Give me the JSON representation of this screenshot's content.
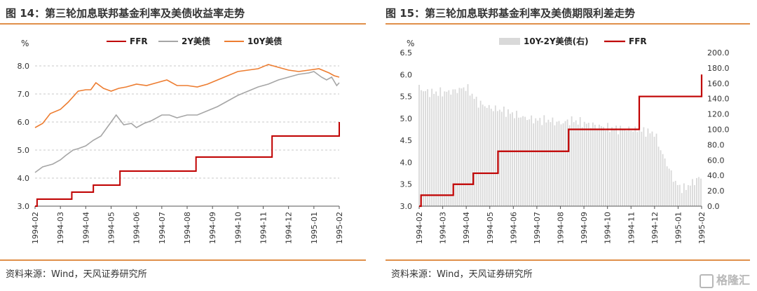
{
  "colors": {
    "ffr": "#c00000",
    "y2": "#a6a6a6",
    "y10": "#ed7d31",
    "spread": "#d9d9d9",
    "grid": "#c8c8c8",
    "rule": "#e0904a"
  },
  "left": {
    "title": "图 14：第三轮加息联邦基金利率及美债收益率走势",
    "source": "资料来源：Wind，天风证券研究所"
  },
  "right": {
    "title": "图 15：第三轮加息联邦基金利率及美债期限利差走势",
    "source": "资料来源：Wind，天风证券研究所"
  },
  "watermark": "格隆汇",
  "chart_data": [
    {
      "type": "line",
      "ylabel": "%",
      "ylim": [
        3.0,
        8.5
      ],
      "yticks": [
        "3.0",
        "4.0",
        "5.0",
        "6.0",
        "7.0",
        "8.0"
      ],
      "grid": "horizontal dashed",
      "legend_position": "top",
      "categories": [
        "1994-02",
        "1994-03",
        "1994-04",
        "1994-05",
        "1994-06",
        "1994-07",
        "1994-08",
        "1994-09",
        "1994-10",
        "1994-11",
        "1994-12",
        "1995-01",
        "1995-02"
      ],
      "series": [
        {
          "name": "FFR",
          "color_key": "ffr",
          "step": true,
          "x": [
            0,
            0.08,
            1.45,
            2.3,
            3.35,
            6.35,
            9.35,
            11.95,
            12.0
          ],
          "values": [
            3.0,
            3.25,
            3.5,
            3.75,
            4.25,
            4.75,
            5.5,
            5.5,
            6.0
          ]
        },
        {
          "name": "2Y美债",
          "color_key": "y2",
          "x": [
            0,
            0.3,
            0.7,
            1.0,
            1.2,
            1.5,
            1.7,
            2.0,
            2.3,
            2.6,
            3.0,
            3.2,
            3.5,
            3.8,
            4.0,
            4.3,
            4.6,
            5.0,
            5.3,
            5.6,
            6.0,
            6.4,
            6.8,
            7.2,
            7.6,
            8.0,
            8.4,
            8.8,
            9.2,
            9.6,
            10.0,
            10.4,
            10.8,
            11.0,
            11.3,
            11.5,
            11.7,
            11.9,
            12.0
          ],
          "values": [
            4.2,
            4.4,
            4.5,
            4.65,
            4.8,
            5.0,
            5.05,
            5.15,
            5.35,
            5.5,
            6.0,
            6.25,
            5.9,
            5.95,
            5.8,
            5.95,
            6.05,
            6.25,
            6.25,
            6.15,
            6.25,
            6.25,
            6.4,
            6.55,
            6.75,
            6.95,
            7.1,
            7.25,
            7.35,
            7.5,
            7.6,
            7.7,
            7.75,
            7.8,
            7.6,
            7.5,
            7.6,
            7.3,
            7.4
          ]
        },
        {
          "name": "10Y美债",
          "color_key": "y10",
          "x": [
            0,
            0.3,
            0.6,
            1.0,
            1.3,
            1.7,
            2.0,
            2.2,
            2.4,
            2.7,
            3.0,
            3.3,
            3.6,
            4.0,
            4.4,
            4.8,
            5.2,
            5.6,
            6.0,
            6.4,
            6.8,
            7.2,
            7.6,
            8.0,
            8.4,
            8.8,
            9.2,
            9.6,
            10.0,
            10.4,
            10.8,
            11.2,
            11.6,
            11.8,
            12.0
          ],
          "values": [
            5.8,
            5.95,
            6.3,
            6.45,
            6.7,
            7.1,
            7.15,
            7.15,
            7.4,
            7.2,
            7.1,
            7.2,
            7.25,
            7.35,
            7.3,
            7.4,
            7.5,
            7.3,
            7.3,
            7.25,
            7.35,
            7.5,
            7.65,
            7.8,
            7.85,
            7.9,
            8.05,
            7.95,
            7.85,
            7.8,
            7.85,
            7.9,
            7.75,
            7.65,
            7.6
          ]
        }
      ]
    },
    {
      "type": "line",
      "ylabel": "%",
      "ylim": [
        3.0,
        6.5
      ],
      "yticks": [
        "3.0",
        "3.5",
        "4.0",
        "4.5",
        "5.0",
        "5.5",
        "6.0",
        "6.5"
      ],
      "y2lim": [
        0,
        200
      ],
      "y2ticks": [
        "0.0",
        "20.0",
        "40.0",
        "60.0",
        "80.0",
        "100.0",
        "120.0",
        "140.0",
        "160.0",
        "180.0",
        "200.0"
      ],
      "grid": "none",
      "legend_position": "top",
      "categories": [
        "1994-02",
        "1994-03",
        "1994-04",
        "1994-05",
        "1994-06",
        "1994-07",
        "1994-08",
        "1994-09",
        "1994-10",
        "1994-11",
        "1994-12",
        "1995-01",
        "1995-02"
      ],
      "series": [
        {
          "name": "10Y-2Y美债(右)",
          "color_key": "spread",
          "type": "bar",
          "axis": "right",
          "x": [
            0.0,
            0.2,
            0.5,
            1.0,
            1.5,
            2.0,
            2.5,
            3.0,
            3.5,
            4.0,
            4.5,
            5.0,
            5.5,
            6.0,
            6.5,
            7.0,
            7.5,
            8.0,
            8.5,
            9.0,
            9.5,
            10.0,
            10.3,
            10.6,
            10.9,
            11.2,
            11.5,
            11.8,
            12.0
          ],
          "values": [
            155,
            150,
            148,
            148,
            150,
            155,
            135,
            128,
            125,
            120,
            115,
            112,
            112,
            108,
            112,
            108,
            105,
            102,
            100,
            100,
            98,
            95,
            70,
            50,
            30,
            22,
            28,
            35,
            38
          ]
        },
        {
          "name": "FFR",
          "color_key": "ffr",
          "step": true,
          "axis": "left",
          "x": [
            0,
            0.08,
            1.45,
            2.3,
            3.35,
            6.35,
            9.35,
            11.95,
            12.0
          ],
          "values": [
            3.0,
            3.25,
            3.5,
            3.75,
            4.25,
            4.75,
            5.5,
            5.5,
            6.0
          ]
        }
      ]
    }
  ]
}
